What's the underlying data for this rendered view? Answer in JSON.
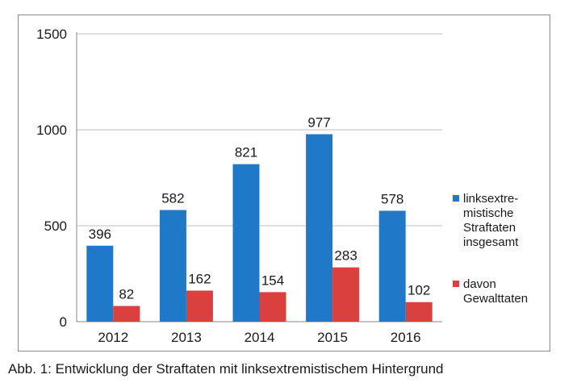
{
  "caption": "Abb. 1: Entwicklung der Straftaten mit linksextremistischem Hintergrund",
  "chart_data": {
    "type": "bar",
    "categories": [
      "2012",
      "2013",
      "2014",
      "2015",
      "2016"
    ],
    "series": [
      {
        "name": "linksextre-\nmistische\nStraftaten\ninsgesamt",
        "color": "#1f78c8",
        "values": [
          396,
          582,
          821,
          977,
          578
        ]
      },
      {
        "name": "davon\nGewalttaten",
        "color": "#d9403e",
        "values": [
          82,
          162,
          154,
          283,
          102
        ]
      }
    ],
    "ylim": [
      0,
      1500
    ],
    "yticks": [
      0,
      500,
      1000,
      1500
    ],
    "grid": true,
    "legend_position": "right",
    "data_labels": true
  }
}
